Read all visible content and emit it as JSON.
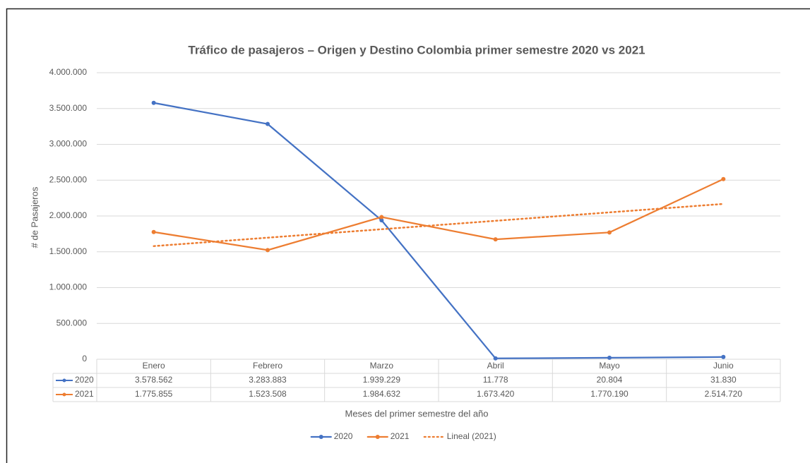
{
  "chart_data": {
    "type": "line",
    "title": "Tráfico de pasajeros – Origen y Destino Colombia primer semestre 2020 vs 2021",
    "x_label": "Meses del primer semestre del año",
    "y_label": "# de Pasajeros",
    "categories": [
      "Enero",
      "Febrero",
      "Marzo",
      "Abril",
      "Mayo",
      "Junio"
    ],
    "series": [
      {
        "name": "2020",
        "color": "#4472c4",
        "style": "solid",
        "values": [
          3578562,
          3283883,
          1939229,
          11778,
          20804,
          31830
        ],
        "value_labels": [
          "3.578.562",
          "3.283.883",
          "1.939.229",
          "11.778",
          "20.804",
          "31.830"
        ]
      },
      {
        "name": "2021",
        "color": "#ed7d31",
        "style": "solid",
        "values": [
          1775855,
          1523508,
          1984632,
          1673420,
          1770190,
          2514720
        ],
        "value_labels": [
          "1.775.855",
          "1.523.508",
          "1.984.632",
          "1.673.420",
          "1.770.190",
          "2.514.720"
        ]
      },
      {
        "name": "Lineal (2021)",
        "color": "#ed7d31",
        "style": "dotted",
        "values": [
          1579210,
          1697014,
          1814819,
          1932623,
          2050428,
          2168232
        ]
      }
    ],
    "ylim": [
      0,
      4000000
    ],
    "yticks": [
      0,
      {
        "value": 500000,
        "label": "500.000"
      },
      {
        "value": 1000000,
        "label": "1.000.000"
      },
      {
        "value": 1500000,
        "label": "1.500.000"
      },
      {
        "value": 2000000,
        "label": "2.000.000"
      },
      {
        "value": 2500000,
        "label": "2.500.000"
      },
      {
        "value": 3000000,
        "label": "3.000.000"
      },
      {
        "value": 3500000,
        "label": "3.500.000"
      },
      {
        "value": 4000000,
        "label": "4.000.000"
      }
    ],
    "grid": true,
    "legend": "bottom",
    "data_table": true
  }
}
